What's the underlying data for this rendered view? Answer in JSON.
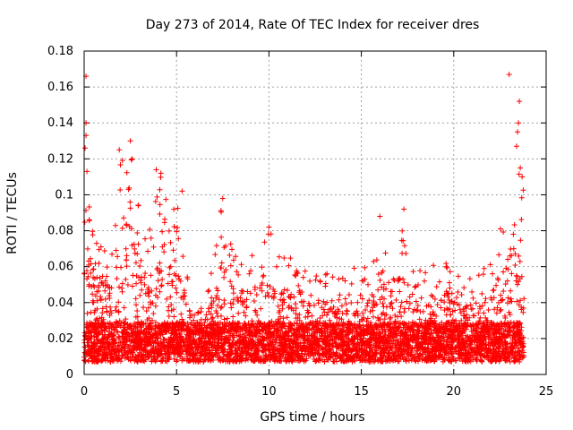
{
  "chart_data": {
    "type": "scatter",
    "title": "Day 273 of 2014, Rate Of TEC Index for receiver dres",
    "xlabel": "GPS time / hours",
    "ylabel": "ROTI / TECUs",
    "xlim": [
      0,
      25
    ],
    "ylim": [
      0,
      0.18
    ],
    "xticks": [
      0,
      5,
      10,
      15,
      20,
      25
    ],
    "xtick_labels": [
      "0",
      "5",
      "10",
      "15",
      "20",
      "25"
    ],
    "yticks": [
      0,
      0.02,
      0.04,
      0.06,
      0.08,
      0.1,
      0.12,
      0.14,
      0.16,
      0.18
    ],
    "ytick_labels": [
      "0",
      "0.02",
      "0.04",
      "0.06",
      "0.08",
      "0.1",
      "0.12",
      "0.14",
      "0.16",
      "0.18"
    ],
    "grid": true,
    "marker": "+",
    "color": "#ff0000",
    "series": [
      {
        "name": "ROTI",
        "data_extent_hours": [
          0,
          23.8
        ],
        "envelope": {
          "hours": [
            0.0,
            0.3,
            0.6,
            1.0,
            1.5,
            2.0,
            2.5,
            3.0,
            3.5,
            4.0,
            4.5,
            5.0,
            5.5,
            6.0,
            6.5,
            7.0,
            7.5,
            8.0,
            8.5,
            9.0,
            9.5,
            10.0,
            10.5,
            11.0,
            11.5,
            12.0,
            12.5,
            13.0,
            13.5,
            14.0,
            14.5,
            15.0,
            15.5,
            16.0,
            16.5,
            17.0,
            17.5,
            18.0,
            18.5,
            19.0,
            19.5,
            20.0,
            20.5,
            21.0,
            21.5,
            22.0,
            22.5,
            23.0,
            23.3,
            23.5,
            23.8
          ],
          "upper_roti": [
            0.14,
            0.1,
            0.08,
            0.078,
            0.07,
            0.125,
            0.13,
            0.09,
            0.08,
            0.114,
            0.11,
            0.1,
            0.06,
            0.035,
            0.04,
            0.065,
            0.098,
            0.07,
            0.07,
            0.07,
            0.07,
            0.082,
            0.065,
            0.07,
            0.06,
            0.06,
            0.065,
            0.06,
            0.055,
            0.06,
            0.06,
            0.06,
            0.06,
            0.088,
            0.06,
            0.092,
            0.065,
            0.08,
            0.065,
            0.06,
            0.07,
            0.06,
            0.05,
            0.06,
            0.065,
            0.062,
            0.085,
            0.1,
            0.125,
            0.15,
            0.1
          ]
        },
        "outliers": [
          {
            "x": 0.1,
            "y": 0.166
          },
          {
            "x": 0.1,
            "y": 0.14
          },
          {
            "x": 0.1,
            "y": 0.133
          },
          {
            "x": 0.05,
            "y": 0.126
          },
          {
            "x": 0.15,
            "y": 0.113
          },
          {
            "x": 1.9,
            "y": 0.125
          },
          {
            "x": 2.5,
            "y": 0.13
          },
          {
            "x": 2.6,
            "y": 0.12
          },
          {
            "x": 2.4,
            "y": 0.103
          },
          {
            "x": 3.9,
            "y": 0.114
          },
          {
            "x": 4.15,
            "y": 0.112
          },
          {
            "x": 5.3,
            "y": 0.102
          },
          {
            "x": 7.5,
            "y": 0.098
          },
          {
            "x": 10.0,
            "y": 0.082
          },
          {
            "x": 16.0,
            "y": 0.088
          },
          {
            "x": 17.3,
            "y": 0.092
          },
          {
            "x": 23.0,
            "y": 0.167
          },
          {
            "x": 23.55,
            "y": 0.152
          },
          {
            "x": 23.5,
            "y": 0.14
          },
          {
            "x": 23.45,
            "y": 0.135
          },
          {
            "x": 23.4,
            "y": 0.127
          },
          {
            "x": 23.6,
            "y": 0.115
          },
          {
            "x": 23.7,
            "y": 0.11
          }
        ]
      }
    ]
  }
}
